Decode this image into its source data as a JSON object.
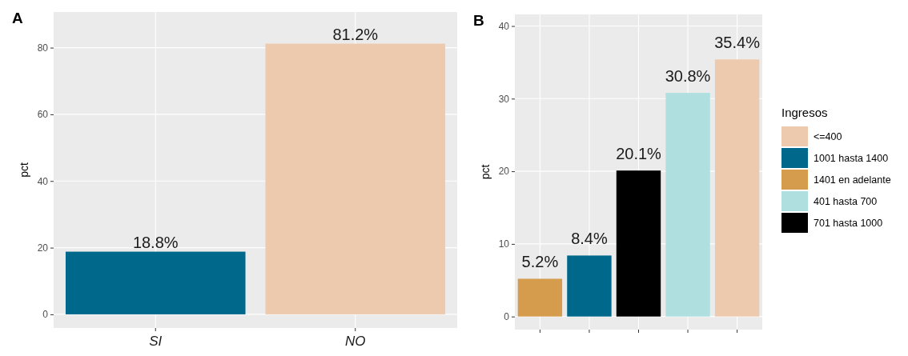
{
  "chart_data": [
    {
      "type": "bar",
      "title": "A",
      "ylabel": "pct",
      "categories": [
        "SI",
        "NO"
      ],
      "values": [
        18.8,
        81.2
      ],
      "colors": [
        "#00688b",
        "#edcaae"
      ],
      "value_labels": [
        "18.8%",
        "81.2%"
      ],
      "ylim": [
        -4.1,
        90.7
      ],
      "yticks": [
        0,
        20,
        40,
        60,
        80
      ],
      "grid": true
    },
    {
      "type": "bar",
      "title": "B",
      "ylabel": "pct",
      "categories": [
        null,
        null,
        null,
        null,
        null
      ],
      "legend_title": "Ingresos",
      "legend": "right",
      "series": [
        {
          "name": "<=400",
          "color": "#edcaae",
          "values": [
            null,
            null,
            null,
            null,
            35.4
          ],
          "value_labels": [
            null,
            null,
            null,
            null,
            "35.4%"
          ]
        },
        {
          "name": "1001 hasta 1400",
          "color": "#00688b",
          "values": [
            null,
            8.4,
            null,
            null,
            null
          ],
          "value_labels": [
            null,
            "8.4%",
            null,
            null,
            null
          ]
        },
        {
          "name": "1401 en adelante",
          "color": "#d69c4e",
          "values": [
            5.2,
            null,
            null,
            null,
            null
          ],
          "value_labels": [
            "5.2%",
            null,
            null,
            null,
            null
          ]
        },
        {
          "name": "401 hasta 700",
          "color": "#b0dfe0",
          "values": [
            null,
            null,
            null,
            30.8,
            null
          ],
          "value_labels": [
            null,
            null,
            null,
            "30.8%",
            null
          ]
        },
        {
          "name": "701 hasta 1000",
          "color": "#000000",
          "values": [
            null,
            null,
            20.1,
            null,
            null
          ],
          "value_labels": [
            null,
            null,
            "20.1%",
            null,
            null
          ]
        }
      ],
      "ylim": [
        -1.8,
        41.6
      ],
      "yticks": [
        0,
        10,
        20,
        30,
        40
      ],
      "grid": true
    }
  ]
}
